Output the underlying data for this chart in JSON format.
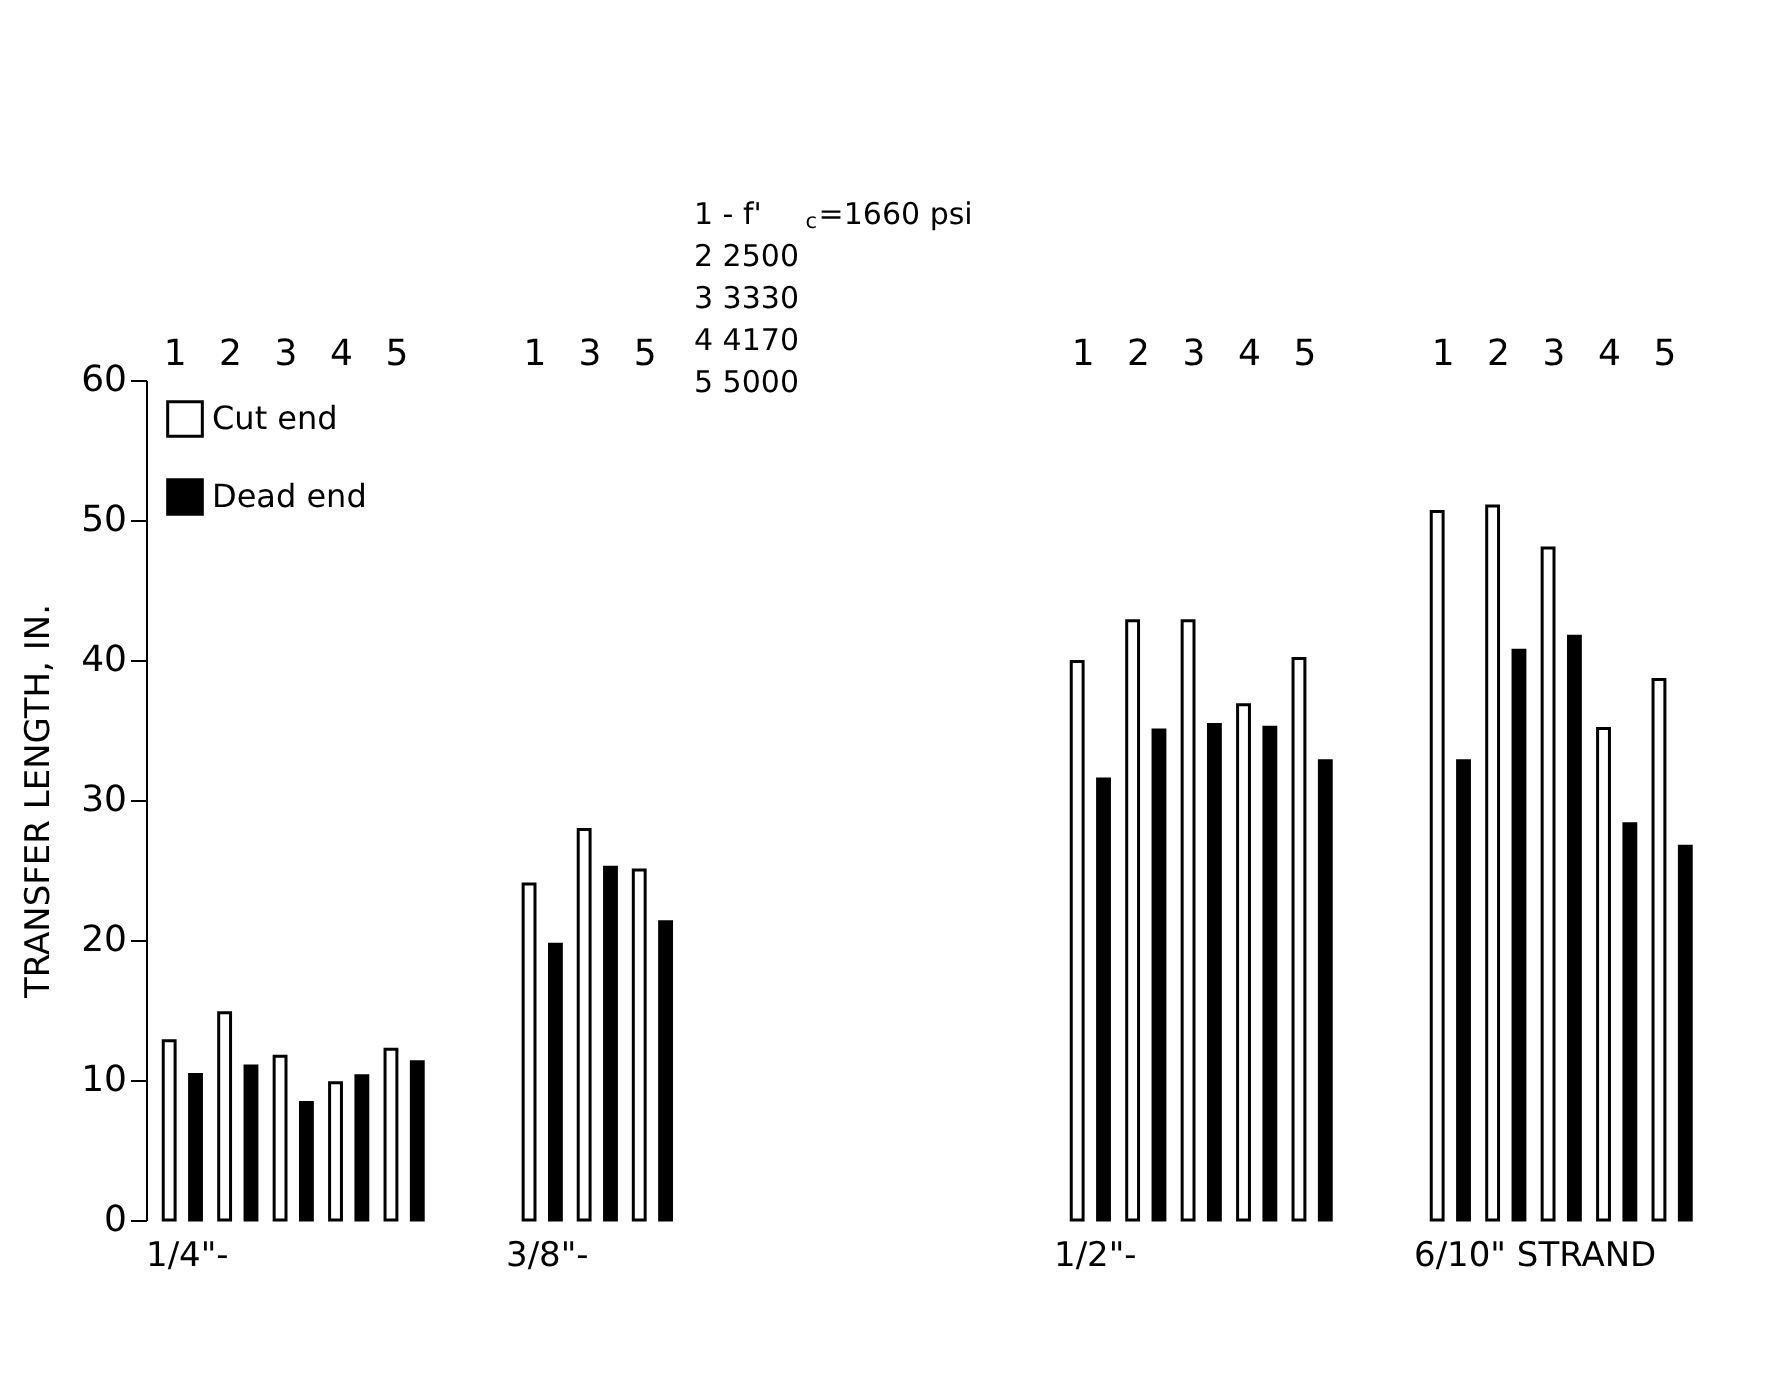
{
  "chart_data": [
    {
      "type": "bar",
      "categories": [
        "1",
        "2",
        "3",
        "4",
        "5"
      ],
      "xlabel": "1/4\"-",
      "ylabel": "TRANSFER LENGTH, IN.",
      "ylim": [
        0,
        60
      ],
      "yticks": [
        0,
        10,
        20,
        30,
        40,
        50,
        60
      ],
      "legend": "top left",
      "series": [
        {
          "name": "Cut end",
          "color": "#ffffff",
          "values": [
            12.8,
            14.8,
            11.7,
            9.8,
            12.2
          ]
        },
        {
          "name": "Dead end",
          "color": "#000000",
          "values": [
            10.4,
            11.0,
            8.4,
            10.3,
            11.3
          ]
        }
      ]
    },
    {
      "type": "bar",
      "categories": [
        "1",
        "3",
        "5"
      ],
      "xlabel": "3/8\"-",
      "ylim": [
        0,
        60
      ],
      "tick_labels": "x",
      "annotations": [
        "1 - f'$_{c}$=1660 psi",
        "2        2500",
        "3        3330",
        "4        4170",
        "5        5000"
      ],
      "series": [
        {
          "color": "#ffffff",
          "values": [
            24.0,
            27.9,
            25.0
          ]
        },
        {
          "color": "#000000",
          "values": [
            19.7,
            25.2,
            21.3
          ]
        }
      ]
    },
    {
      "type": "bar",
      "categories": [
        "1",
        "2",
        "3",
        "4",
        "5"
      ],
      "xlabel": "1/2\"-",
      "ylim": [
        0,
        60
      ],
      "tick_labels": "x",
      "series": [
        {
          "color": "#ffffff",
          "values": [
            39.9,
            42.8,
            42.8,
            36.8,
            40.1
          ]
        },
        {
          "color": "#000000",
          "values": [
            31.5,
            35.0,
            35.4,
            35.2,
            32.8
          ]
        }
      ]
    },
    {
      "type": "bar",
      "categories": [
        "1",
        "2",
        "3",
        "4",
        "5"
      ],
      "xlabel": "6/10\" STRAND",
      "ylim": [
        0,
        60
      ],
      "tick_labels": "x",
      "series": [
        {
          "color": "#ffffff",
          "values": [
            50.6,
            51.0,
            48.0,
            35.1,
            38.6
          ]
        },
        {
          "color": "#000000",
          "values": [
            32.8,
            40.7,
            41.7,
            28.3,
            26.7
          ]
        }
      ]
    }
  ]
}
